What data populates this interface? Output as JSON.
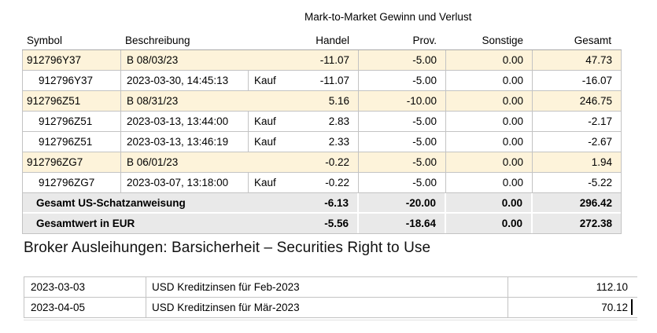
{
  "colors": {
    "group_row_bg": "#fdf3da",
    "summary_row_bg": "#e9e9e9",
    "border": "#c3c3c3",
    "text": "#000000"
  },
  "mtm": {
    "title": "Mark-to-Market Gewinn und Verlust",
    "columns": [
      "Symbol",
      "Beschreibung",
      "Handel",
      "Prov.",
      "Sonstige",
      "Gesamt"
    ],
    "rows": [
      {
        "type": "group",
        "symbol": "912796Y37",
        "beschreibung": "B 08/03/23",
        "aktion": "",
        "handel": "-11.07",
        "prov": "-5.00",
        "sonstige": "0.00",
        "gesamt": "47.73"
      },
      {
        "type": "detail",
        "symbol": "912796Y37",
        "beschreibung": "2023-03-30, 14:45:13",
        "aktion": "Kauf",
        "handel": "-11.07",
        "prov": "-5.00",
        "sonstige": "0.00",
        "gesamt": "-16.07"
      },
      {
        "type": "group",
        "symbol": "912796Z51",
        "beschreibung": "B 08/31/23",
        "aktion": "",
        "handel": "5.16",
        "prov": "-10.00",
        "sonstige": "0.00",
        "gesamt": "246.75"
      },
      {
        "type": "detail",
        "symbol": "912796Z51",
        "beschreibung": "2023-03-13, 13:44:00",
        "aktion": "Kauf",
        "handel": "2.83",
        "prov": "-5.00",
        "sonstige": "0.00",
        "gesamt": "-2.17"
      },
      {
        "type": "detail",
        "symbol": "912796Z51",
        "beschreibung": "2023-03-13, 13:46:19",
        "aktion": "Kauf",
        "handel": "2.33",
        "prov": "-5.00",
        "sonstige": "0.00",
        "gesamt": "-2.67"
      },
      {
        "type": "group",
        "symbol": "912796ZG7",
        "beschreibung": "B 06/01/23",
        "aktion": "",
        "handel": "-0.22",
        "prov": "-5.00",
        "sonstige": "0.00",
        "gesamt": "1.94"
      },
      {
        "type": "detail",
        "symbol": "912796ZG7",
        "beschreibung": "2023-03-07, 13:18:00",
        "aktion": "Kauf",
        "handel": "-0.22",
        "prov": "-5.00",
        "sonstige": "0.00",
        "gesamt": "-5.22"
      },
      {
        "type": "summary",
        "label": "Gesamt US-Schatzanweisung",
        "handel": "-6.13",
        "prov": "-20.00",
        "sonstige": "0.00",
        "gesamt": "296.42"
      },
      {
        "type": "summary",
        "label": "Gesamtwert in EUR",
        "handel": "-5.56",
        "prov": "-18.64",
        "sonstige": "0.00",
        "gesamt": "272.38"
      }
    ]
  },
  "broker": {
    "heading": "Broker Ausleihungen: Barsicherheit – Securities Right to Use",
    "rows": [
      {
        "date": "2023-03-03",
        "description": "USD Kreditzinsen für Feb-2023",
        "amount": "112.10"
      },
      {
        "date": "2023-04-05",
        "description": "USD Kreditzinsen für Mär-2023",
        "amount": "70.12"
      }
    ]
  }
}
